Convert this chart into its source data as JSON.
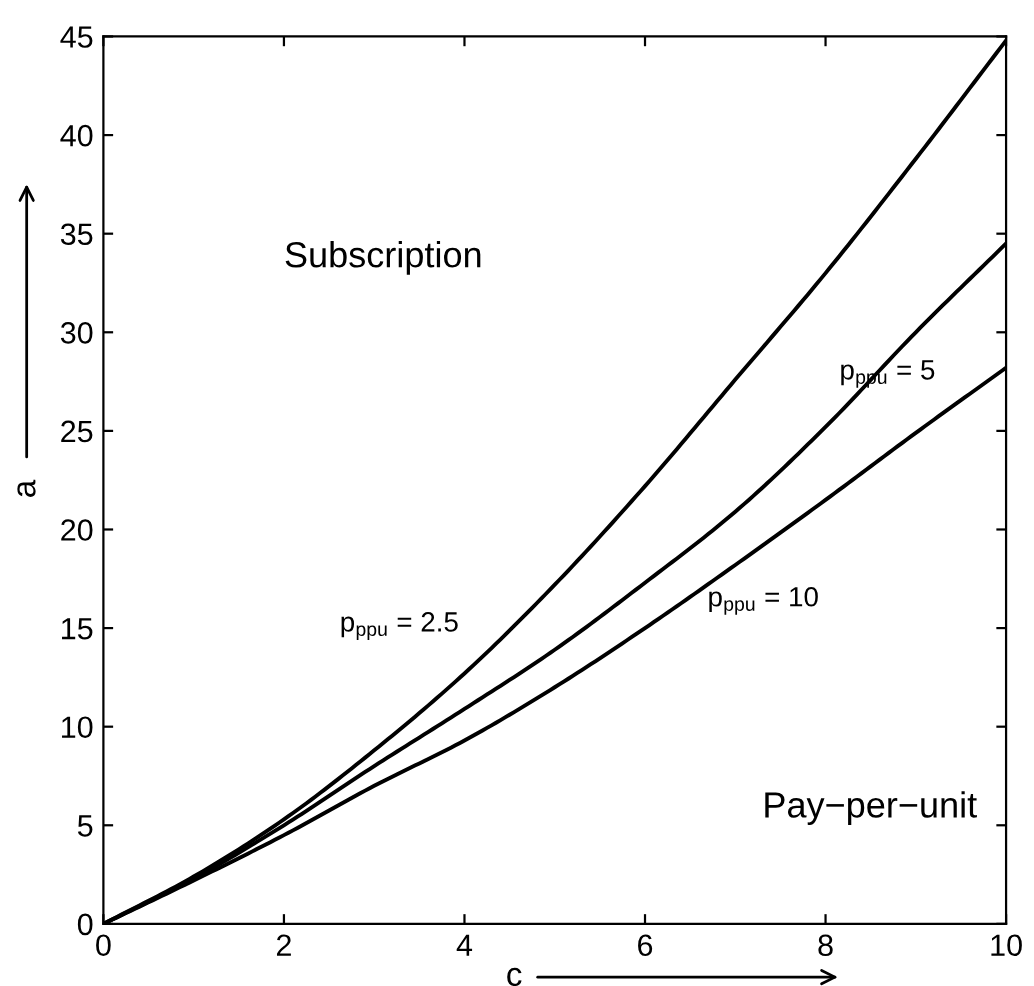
{
  "chart_data": {
    "type": "line",
    "xlabel": "c",
    "ylabel": "a",
    "x": [
      0,
      1,
      2,
      3,
      4,
      5,
      6,
      7,
      8,
      9,
      10
    ],
    "series": [
      {
        "name": "p$_{ppu}$ = 2.5",
        "color": "#000000",
        "values": [
          0,
          2.4,
          5.3,
          8.8,
          12.7,
          17.2,
          22.2,
          27.6,
          33.0,
          38.8,
          44.8
        ]
      },
      {
        "name": "p$_{ppu}$ = 5",
        "color": "#000000",
        "values": [
          0,
          2.3,
          5.0,
          8.0,
          10.9,
          13.9,
          17.3,
          20.9,
          25.2,
          30.0,
          34.5
        ]
      },
      {
        "name": "p$_{ppu}$ = 10",
        "color": "#000000",
        "values": [
          0,
          2.2,
          4.5,
          7.0,
          9.3,
          12.0,
          15.0,
          18.2,
          21.5,
          24.9,
          28.2
        ]
      }
    ],
    "annotations": [
      "Subscription",
      "Pay−per−unit"
    ],
    "xlim": [
      0,
      10
    ],
    "xticks": [
      0,
      2,
      4,
      6,
      8,
      10
    ],
    "ylim": [
      0,
      45
    ],
    "yticks": [
      0,
      5,
      10,
      15,
      20,
      25,
      30,
      35,
      40,
      45
    ],
    "grid": false,
    "legend": false,
    "marker": "none",
    "line_style": "solid"
  }
}
